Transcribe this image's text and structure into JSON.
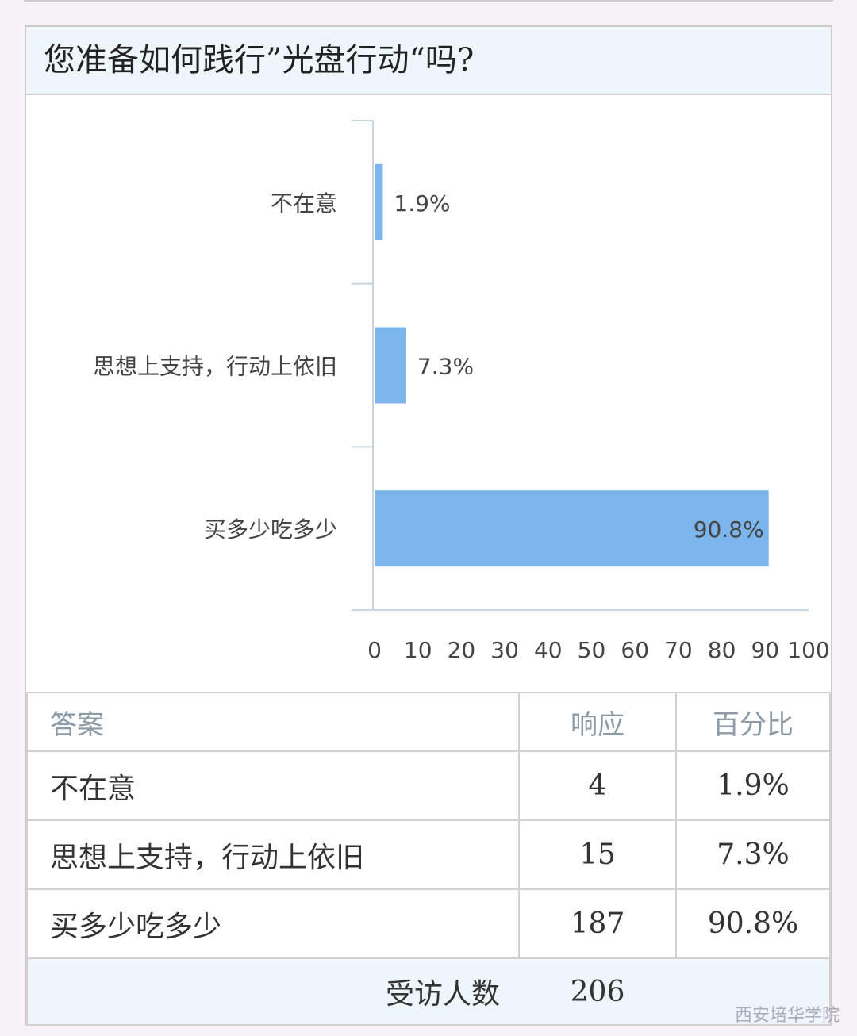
{
  "title": "您准备如何践行”光盘行动“吗?",
  "chart_data": {
    "type": "bar",
    "orientation": "horizontal",
    "categories": [
      "不在意",
      "思想上支持，行动上依旧",
      "买多少吃多少"
    ],
    "values": [
      1.9,
      7.3,
      90.8
    ],
    "data_labels": [
      "1.9%",
      "7.3%",
      "90.8%"
    ],
    "xlim": [
      0,
      100
    ],
    "xticks": [
      0,
      10,
      20,
      30,
      40,
      50,
      60,
      70,
      80,
      90,
      100
    ],
    "bar_color": "#7cb5ec",
    "grid": false
  },
  "table": {
    "headers": [
      "答案",
      "响应",
      "百分比"
    ],
    "rows": [
      [
        "不在意",
        "4",
        "1.9%"
      ],
      [
        "思想上支持，行动上依旧",
        "15",
        "7.3%"
      ],
      [
        "买多少吃多少",
        "187",
        "90.8%"
      ]
    ],
    "footer_label": "受访人数",
    "footer_value": "206"
  },
  "watermark": "西安培华学院"
}
